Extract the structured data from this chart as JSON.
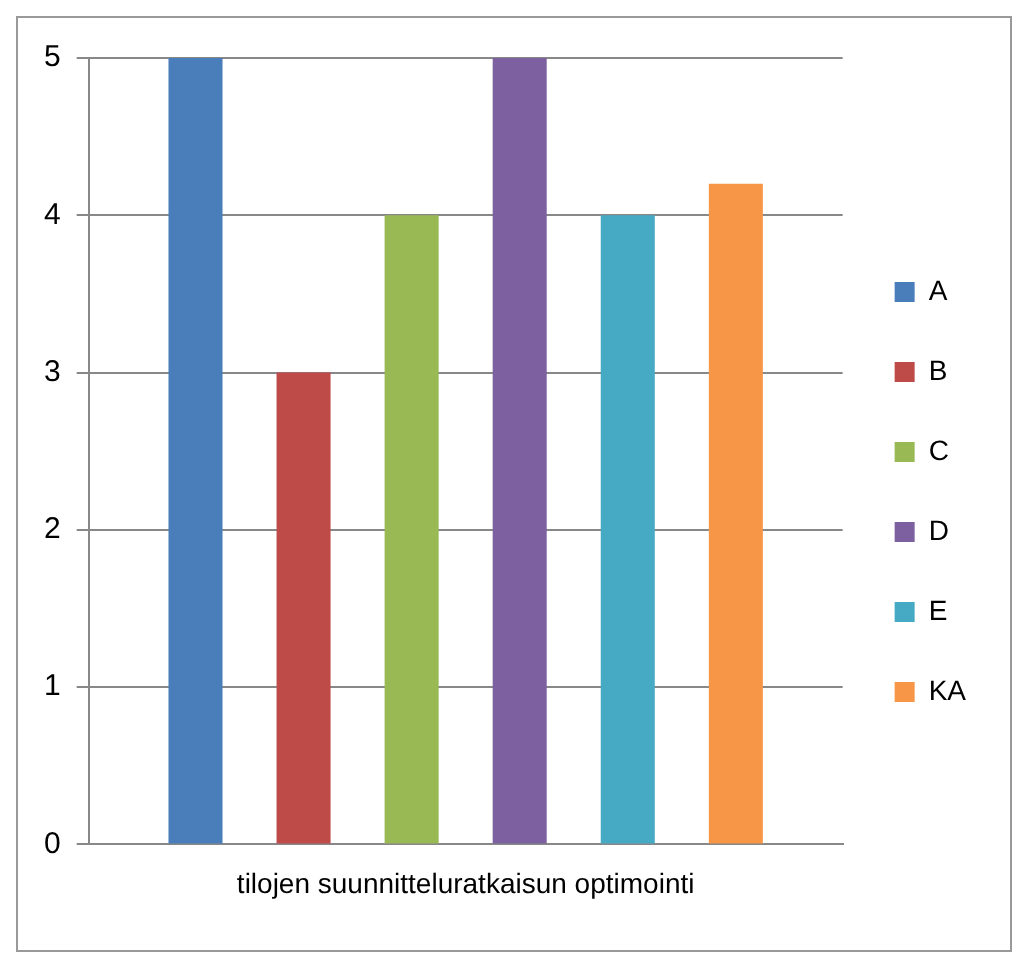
{
  "chart_data": {
    "type": "bar",
    "categories": [
      "tilojen suunnitteluratkaisun optimointi"
    ],
    "series": [
      {
        "name": "A",
        "color": "#4a7ebb",
        "values": [
          5
        ]
      },
      {
        "name": "B",
        "color": "#be4b48",
        "values": [
          3
        ]
      },
      {
        "name": "C",
        "color": "#98b954",
        "values": [
          4
        ]
      },
      {
        "name": "D",
        "color": "#7d60a0",
        "values": [
          5
        ]
      },
      {
        "name": "E",
        "color": "#46aac5",
        "values": [
          4
        ]
      },
      {
        "name": "KA",
        "color": "#f79646",
        "values": [
          4.2
        ]
      }
    ],
    "ylim": [
      0,
      5
    ],
    "yticks": [
      0,
      1,
      2,
      3,
      4,
      5
    ],
    "grid": "y",
    "legend": "right"
  }
}
